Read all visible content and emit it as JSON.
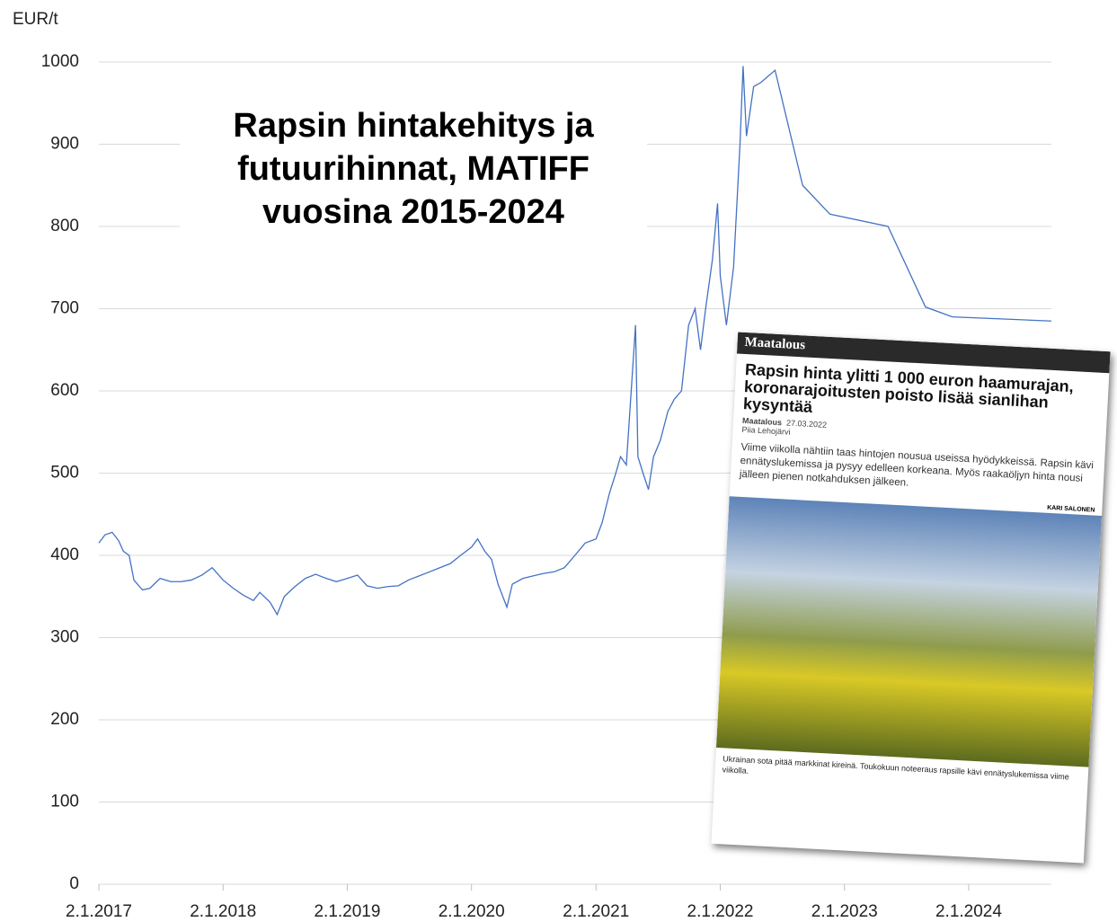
{
  "chart_data": {
    "type": "line",
    "title": "Rapsin hintakehitys ja futuurihinnat, MATIFF vuosina 2015-2024",
    "y_label": "EUR/t",
    "x": [
      "2017-01-02",
      "2017-01-20",
      "2017-02-10",
      "2017-03-01",
      "2017-03-15",
      "2017-04-01",
      "2017-04-15",
      "2017-05-10",
      "2017-06-01",
      "2017-07-01",
      "2017-08-01",
      "2017-09-01",
      "2017-10-01",
      "2017-11-01",
      "2017-12-01",
      "2018-01-02",
      "2018-02-01",
      "2018-03-01",
      "2018-04-01",
      "2018-04-20",
      "2018-05-20",
      "2018-06-10",
      "2018-07-01",
      "2018-08-01",
      "2018-09-01",
      "2018-10-01",
      "2018-11-01",
      "2018-12-01",
      "2019-01-02",
      "2019-02-01",
      "2019-03-01",
      "2019-04-01",
      "2019-05-01",
      "2019-06-01",
      "2019-07-01",
      "2019-08-01",
      "2019-09-01",
      "2019-10-01",
      "2019-11-01",
      "2019-12-01",
      "2020-01-02",
      "2020-01-20",
      "2020-02-10",
      "2020-03-01",
      "2020-03-20",
      "2020-04-15",
      "2020-05-01",
      "2020-06-01",
      "2020-07-01",
      "2020-08-01",
      "2020-09-01",
      "2020-10-01",
      "2020-11-01",
      "2020-12-01",
      "2021-01-02",
      "2021-01-20",
      "2021-02-10",
      "2021-03-01",
      "2021-03-15",
      "2021-04-01",
      "2021-04-28",
      "2021-05-05",
      "2021-05-20",
      "2021-06-05",
      "2021-06-20",
      "2021-07-10",
      "2021-08-01",
      "2021-08-20",
      "2021-09-10",
      "2021-10-01",
      "2021-10-20",
      "2021-11-05",
      "2021-11-20",
      "2021-12-10",
      "2021-12-25",
      "2022-01-02",
      "2022-01-20",
      "2022-02-10",
      "2022-03-01",
      "2022-03-10",
      "2022-03-20",
      "2022-04-10",
      "2022-05-01",
      "2022-06-12",
      "2022-09-01",
      "2022-11-20",
      "2023-05-10",
      "2023-08-28",
      "2023-11-15",
      "2024-09-01"
    ],
    "series": [
      {
        "color": "#4472c4",
        "values": [
          415,
          425,
          428,
          418,
          405,
          400,
          370,
          358,
          360,
          372,
          368,
          368,
          370,
          376,
          385,
          370,
          360,
          352,
          345,
          355,
          343,
          328,
          350,
          362,
          372,
          377,
          372,
          368,
          372,
          376,
          363,
          360,
          362,
          363,
          370,
          375,
          380,
          385,
          390,
          400,
          410,
          420,
          405,
          395,
          365,
          337,
          365,
          372,
          375,
          378,
          380,
          385,
          400,
          415,
          420,
          440,
          475,
          500,
          520,
          510,
          680,
          520,
          500,
          480,
          520,
          540,
          575,
          590,
          600,
          680,
          700,
          650,
          700,
          760,
          828,
          740,
          680,
          750,
          900,
          995,
          910,
          970,
          975,
          990,
          850,
          815,
          800,
          702,
          690,
          685
        ]
      }
    ],
    "xlim": [
      "2017-01-02",
      "2024-09-01"
    ],
    "xticks": [
      {
        "value": "2017-01-02",
        "label": "2.1.2017"
      },
      {
        "value": "2018-01-02",
        "label": "2.1.2018"
      },
      {
        "value": "2019-01-02",
        "label": "2.1.2019"
      },
      {
        "value": "2020-01-02",
        "label": "2.1.2020"
      },
      {
        "value": "2021-01-02",
        "label": "2.1.2021"
      },
      {
        "value": "2022-01-02",
        "label": "2.1.2022"
      },
      {
        "value": "2023-01-02",
        "label": "2.1.2023"
      },
      {
        "value": "2024-01-02",
        "label": "2.1.2024"
      }
    ],
    "ylim": [
      0,
      1000
    ],
    "yticks": [
      0,
      100,
      200,
      300,
      400,
      500,
      600,
      700,
      800,
      900,
      1000
    ],
    "grid": true
  },
  "inset_article": {
    "section": "Maatalous",
    "headline": "Rapsin hinta ylitti 1 000 euron haamurajan, koronarajoitusten poisto lisää sianlihan kysyntää",
    "source": "Maatalous",
    "date": "27.03.2022",
    "author": "Piia Lehojärvi",
    "lead": "Viime viikolla nähtiin taas hintojen nousua useissa hyödykkeissä. Rapsin kävi ennätyslukemissa ja pysyy edelleen korkeana. Myös raakaöljyn hinta nousi jälleen pienen notkahduksen jälkeen.",
    "photo_credit": "KARI SALONEN",
    "caption": "Ukrainan sota pitää markkinat kireinä. Toukokuun noteeraus rapsille kävi ennätyslukemissa viime viikolla."
  }
}
